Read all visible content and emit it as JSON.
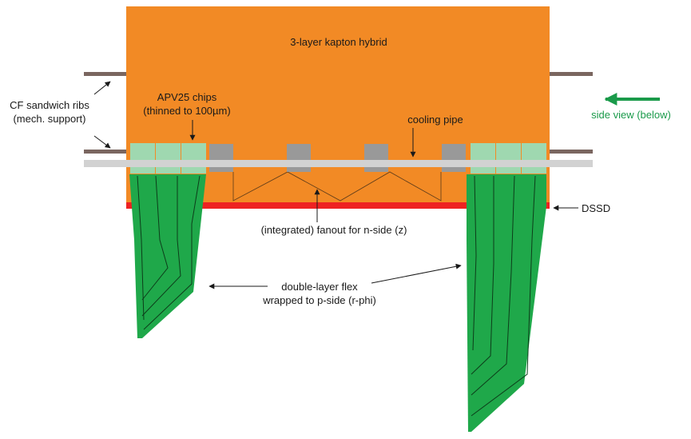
{
  "labels": {
    "hybrid": "3-layer kapton hybrid",
    "apv_line1": "APV25 chips",
    "apv_line2": "(thinned to 100µm)",
    "ribs_line1": "CF sandwich ribs",
    "ribs_line2": "(mech. support)",
    "side_view": "side view (below)",
    "cooling": "cooling pipe",
    "dssd": "DSSD",
    "fanout": "(integrated) fanout for n-side (z)",
    "flex_line1": "double-layer flex",
    "flex_line2": "wrapped to p-side (r-phi)"
  },
  "colors": {
    "hybrid": "#f28a25",
    "flex": "#1fa84a",
    "chip": "#9fd8b0",
    "connector": "#999999",
    "pipe": "#d2d2d2",
    "rib": "#7a6660",
    "dssd": "#ee2222",
    "arrow_green": "#1a9a4a"
  }
}
